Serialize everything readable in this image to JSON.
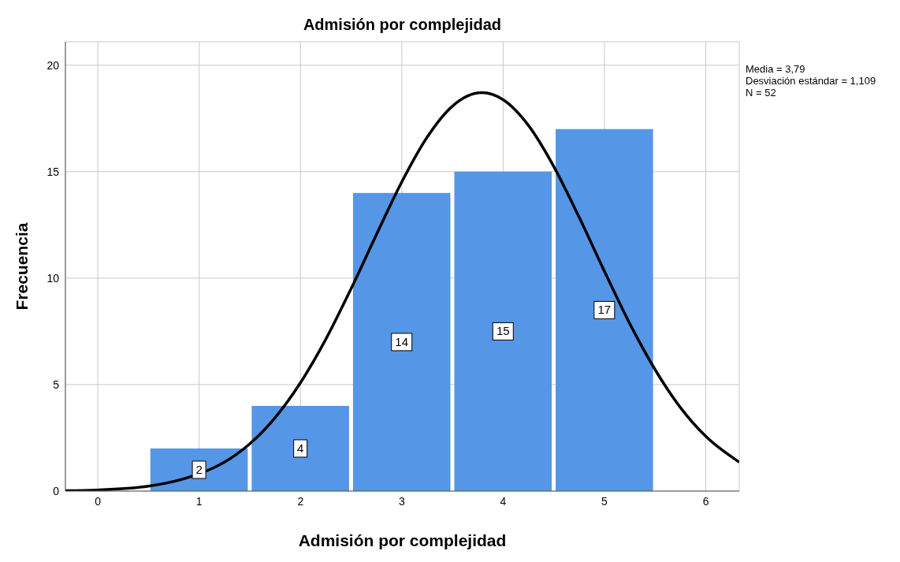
{
  "chart_data": {
    "type": "histogram",
    "title": "Admisión por complejidad",
    "xlabel": "Admisión por complejidad",
    "ylabel": "Frecuencia",
    "bins": [
      0.5,
      1.5,
      2.5,
      3.5,
      4.5,
      5.5
    ],
    "values": [
      2,
      4,
      14,
      15,
      17
    ],
    "color": "#5596e6",
    "value_labels": [
      "2",
      "4",
      "14",
      "15",
      "17"
    ],
    "xlim": [
      -0.32,
      6.33
    ],
    "ylim": [
      0,
      21.1
    ],
    "xticks": [
      0,
      1,
      2,
      3,
      4,
      5,
      6
    ],
    "yticks": [
      0,
      5,
      10,
      15,
      20
    ],
    "grid": true,
    "annotations": [
      "Media = 3,79",
      "Desviación estándar = 1,109",
      "N = 52"
    ],
    "series": [
      {
        "type": "line",
        "color": "#000000",
        "x": [
          -0.32,
          0,
          0.5,
          0.85,
          1.15,
          1.25,
          1.5,
          1.75,
          2,
          2.25,
          2.5,
          2.75,
          3,
          3.25,
          3.5,
          3.79,
          4,
          4.25,
          4.5,
          4.75,
          5,
          5.25,
          5.5,
          5.75,
          6,
          6.33
        ],
        "values": [
          0.02,
          0.05,
          0.23,
          0.58,
          1.11,
          1.36,
          2.22,
          3.45,
          5.09,
          7.13,
          9.51,
          12.05,
          14.52,
          16.62,
          18.08,
          18.71,
          18.38,
          17.17,
          15.24,
          12.86,
          10.32,
          7.86,
          5.7,
          3.92,
          2.57,
          1.36
        ]
      }
    ]
  }
}
